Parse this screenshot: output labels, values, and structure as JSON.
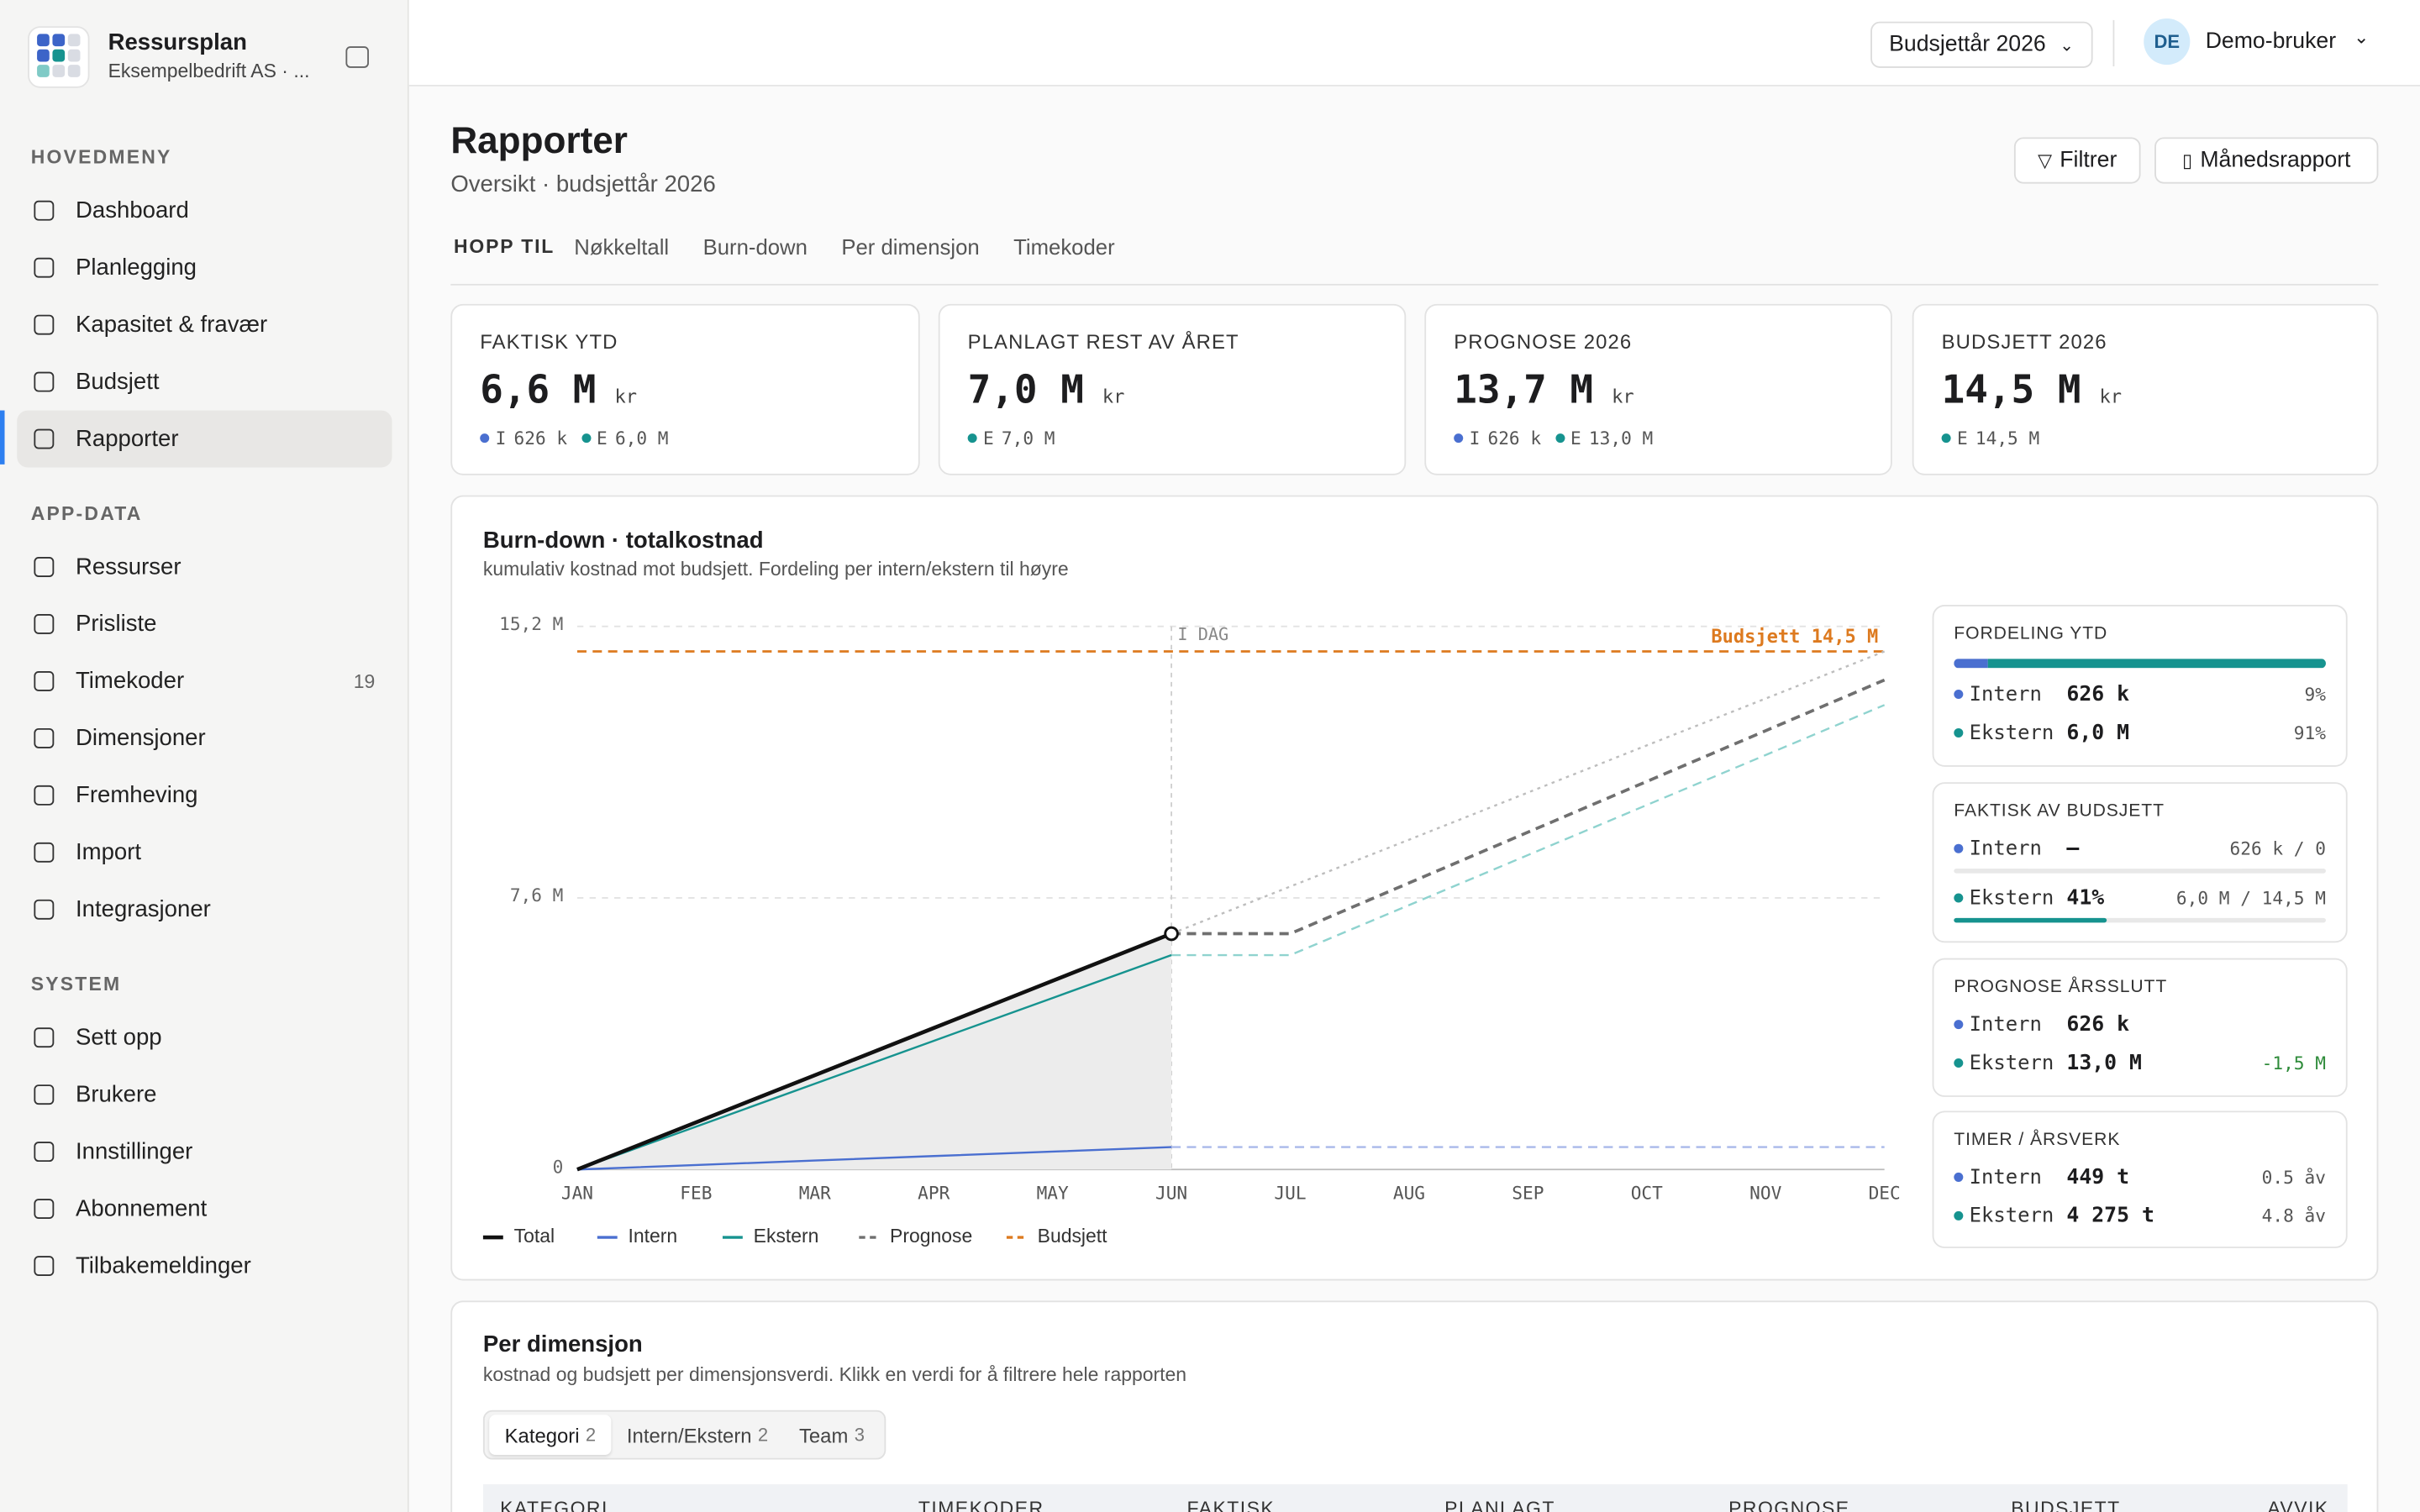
{
  "app": {
    "name": "Ressursplan",
    "org": "Eksempelbedrift AS · ..."
  },
  "nav": [
    {
      "heading": "HOVEDMENY",
      "items": [
        {
          "label": "Dashboard"
        },
        {
          "label": "Planlegging"
        },
        {
          "label": "Kapasitet & fravær"
        },
        {
          "label": "Budsjett"
        },
        {
          "label": "Rapporter",
          "active": true
        }
      ]
    },
    {
      "heading": "APP-DATA",
      "items": [
        {
          "label": "Ressurser"
        },
        {
          "label": "Prisliste"
        },
        {
          "label": "Timekoder",
          "badge": 19
        },
        {
          "label": "Dimensjoner"
        },
        {
          "label": "Fremheving"
        },
        {
          "label": "Import"
        },
        {
          "label": "Integrasjoner"
        }
      ]
    },
    {
      "heading": "SYSTEM",
      "items": [
        {
          "label": "Sett opp"
        },
        {
          "label": "Brukere"
        },
        {
          "label": "Innstillinger"
        },
        {
          "label": "Abonnement"
        },
        {
          "label": "Tilbakemeldinger"
        }
      ]
    }
  ],
  "topbar": {
    "budget_year": "Budsjettår 2026",
    "user_initials": "DE",
    "user_name": "Demo-bruker"
  },
  "page": {
    "title": "Rapporter",
    "subtitle": "Oversikt · budsjettår 2026",
    "actions": [
      "Filtrer",
      "Månedsrapport"
    ],
    "jump_label": "HOPP TIL",
    "jump_links": [
      "Nøkkeltall",
      "Burn-down",
      "Per dimensjon",
      "Timekoder"
    ]
  },
  "kpis": [
    {
      "label": "FAKTISK YTD",
      "value": "6,6 M",
      "unit": "kr",
      "parts": [
        {
          "key": "I",
          "text": "626 k",
          "color": "#4a6fd0"
        },
        {
          "key": "E",
          "text": "6,0 M",
          "color": "#16938f"
        }
      ]
    },
    {
      "label": "PLANLAGT REST AV ÅRET",
      "value": "7,0 M",
      "unit": "kr",
      "parts": [
        {
          "key": "E",
          "text": "7,0 M",
          "color": "#16938f"
        }
      ]
    },
    {
      "label": "PROGNOSE 2026",
      "value": "13,7 M",
      "unit": "kr",
      "parts": [
        {
          "key": "I",
          "text": "626 k",
          "color": "#4a6fd0"
        },
        {
          "key": "E",
          "text": "13,0 M",
          "color": "#16938f"
        }
      ]
    },
    {
      "label": "BUDSJETT 2026",
      "value": "14,5 M",
      "unit": "kr",
      "parts": [
        {
          "key": "E",
          "text": "14,5 M",
          "color": "#16938f"
        }
      ]
    }
  ],
  "burndown": {
    "title": "Burn-down · totalkostnad",
    "subtitle": "kumulativ kostnad mot budsjett. Fordeling per intern/ekstern til høyre",
    "chart_data": {
      "type": "line",
      "categories": [
        "JAN",
        "FEB",
        "MAR",
        "APR",
        "MAY",
        "JUN",
        "JUL",
        "AUG",
        "SEP",
        "OCT",
        "NOV",
        "DEC"
      ],
      "ylim": [
        0,
        15.2
      ],
      "yticks": [
        0,
        {
          "value": 7.6,
          "label": "7,6 M"
        },
        {
          "value": 15.2,
          "label": "15,2 M"
        }
      ],
      "grid": true,
      "today": {
        "label": "I DAG",
        "index": 5
      },
      "budget": {
        "name": "Budsjett",
        "value": 14.5,
        "label": "Budsjett 14,5 M",
        "color": "#dd7a1f"
      },
      "series": [
        {
          "name": "Total",
          "color": "#111111",
          "style": "solid",
          "area": true,
          "values": [
            0,
            1.32,
            2.64,
            3.96,
            5.28,
            6.6,
            null,
            null,
            null,
            null,
            null,
            null
          ]
        },
        {
          "name": "Intern",
          "color": "#4a6fd0",
          "style": "solid",
          "values": [
            0,
            0.125,
            0.25,
            0.376,
            0.5,
            0.626,
            null,
            null,
            null,
            null,
            null,
            null
          ]
        },
        {
          "name": "Ekstern",
          "color": "#16938f",
          "style": "solid",
          "values": [
            0,
            1.2,
            2.4,
            3.6,
            4.8,
            6.0,
            null,
            null,
            null,
            null,
            null,
            null
          ]
        },
        {
          "name": "Prognose",
          "color": "#6f6f6f",
          "style": "dashed",
          "values": [
            null,
            null,
            null,
            null,
            null,
            6.6,
            6.6,
            8.02,
            9.44,
            10.86,
            12.28,
            13.7
          ]
        },
        {
          "color": "#8fd3cf",
          "style": "dashed",
          "values": [
            null,
            null,
            null,
            null,
            null,
            6.0,
            6.0,
            7.4,
            8.8,
            10.2,
            11.6,
            13.0
          ]
        },
        {
          "color": "#a9b9ea",
          "style": "dashed",
          "values": [
            null,
            null,
            null,
            null,
            null,
            0.626,
            0.626,
            0.626,
            0.626,
            0.626,
            0.626,
            0.626
          ]
        },
        {
          "color": "#bdbdbd",
          "style": "dotted",
          "values": [
            null,
            null,
            null,
            null,
            null,
            6.6,
            7.92,
            9.23,
            10.55,
            11.87,
            13.18,
            14.5
          ]
        }
      ]
    }
  },
  "summary": [
    {
      "title": "FORDELING YTD",
      "bar": {
        "values": [
          9,
          91
        ],
        "colors": [
          "#4a6fd0",
          "#16938f"
        ]
      },
      "rows": [
        {
          "name": "Intern",
          "color": "#4a6fd0",
          "value": "626 k",
          "right": "9%"
        },
        {
          "name": "Ekstern",
          "color": "#16938f",
          "value": "6,0 M",
          "right": "91%"
        }
      ]
    },
    {
      "title": "FAKTISK AV BUDSJETT",
      "rows": [
        {
          "name": "Intern",
          "color": "#4a6fd0",
          "value": "—",
          "right": "626 k / 0"
        },
        {
          "name": "Ekstern",
          "color": "#16938f",
          "value": "41%",
          "right": "6,0 M / 14,5 M",
          "progress": 41
        }
      ]
    },
    {
      "title": "PROGNOSE ÅRSSLUTT",
      "rows": [
        {
          "name": "Intern",
          "color": "#4a6fd0",
          "value": "626 k"
        },
        {
          "name": "Ekstern",
          "color": "#16938f",
          "value": "13,0 M",
          "right": "-1,5 M",
          "right_color": "#2e8b3a"
        }
      ]
    },
    {
      "title": "TIMER / ÅRSVERK",
      "rows": [
        {
          "name": "Intern",
          "color": "#4a6fd0",
          "value": "449 t",
          "right": "0.5 åv"
        },
        {
          "name": "Ekstern",
          "color": "#16938f",
          "value": "4 275 t",
          "right": "4.8 åv"
        }
      ]
    }
  ],
  "dimension": {
    "title": "Per dimensjon",
    "subtitle": "kostnad og budsjett per dimensjonsverdi. Klikk en verdi for å filtrere hele rapporten",
    "tabs": [
      {
        "label": "Kategori",
        "count": 2,
        "active": true
      },
      {
        "label": "Intern/Ekstern",
        "count": 2
      },
      {
        "label": "Team",
        "count": 3
      }
    ],
    "columns": [
      "KATEGORI",
      "TIMEKODER",
      "FAKTISK",
      "PLANLAGT",
      "PROGNOSE",
      "BUDSJETT",
      "AVVIK"
    ]
  }
}
